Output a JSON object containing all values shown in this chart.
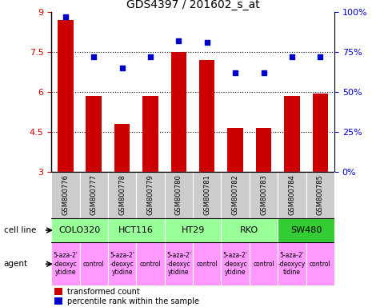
{
  "title": "GDS4397 / 201602_s_at",
  "samples": [
    "GSM800776",
    "GSM800777",
    "GSM800778",
    "GSM800779",
    "GSM800780",
    "GSM800781",
    "GSM800782",
    "GSM800783",
    "GSM800784",
    "GSM800785"
  ],
  "bar_values": [
    8.7,
    5.85,
    4.8,
    5.85,
    7.5,
    7.2,
    4.65,
    4.65,
    5.85,
    5.95
  ],
  "dot_values": [
    97,
    72,
    65,
    72,
    82,
    81,
    62,
    62,
    72,
    72
  ],
  "ylim": [
    3,
    9
  ],
  "yticks": [
    3,
    4.5,
    6,
    7.5,
    9
  ],
  "ytick_labels": [
    "3",
    "4.5",
    "6",
    "7.5",
    "9"
  ],
  "y2lim": [
    0,
    100
  ],
  "y2ticks": [
    0,
    25,
    50,
    75,
    100
  ],
  "y2labels": [
    "0%",
    "25%",
    "50%",
    "75%",
    "100%"
  ],
  "bar_color": "#cc0000",
  "dot_color": "#0000cc",
  "cell_lines": [
    {
      "label": "COLO320",
      "start": 0,
      "end": 2,
      "color": "#99ff99"
    },
    {
      "label": "HCT116",
      "start": 2,
      "end": 4,
      "color": "#99ff99"
    },
    {
      "label": "HT29",
      "start": 4,
      "end": 6,
      "color": "#99ff99"
    },
    {
      "label": "RKO",
      "start": 6,
      "end": 8,
      "color": "#99ff99"
    },
    {
      "label": "SW480",
      "start": 8,
      "end": 10,
      "color": "#33cc33"
    }
  ],
  "agents": [
    {
      "label": "5-aza-2'\n-deoxyc\nytidine",
      "start": 0,
      "end": 1,
      "color": "#ff99ff"
    },
    {
      "label": "control",
      "start": 1,
      "end": 2,
      "color": "#ff99ff"
    },
    {
      "label": "5-aza-2'\n-deoxyc\nytidine",
      "start": 2,
      "end": 3,
      "color": "#ff99ff"
    },
    {
      "label": "control",
      "start": 3,
      "end": 4,
      "color": "#ff99ff"
    },
    {
      "label": "5-aza-2'\n-deoxyc\nytidine",
      "start": 4,
      "end": 5,
      "color": "#ff99ff"
    },
    {
      "label": "control",
      "start": 5,
      "end": 6,
      "color": "#ff99ff"
    },
    {
      "label": "5-aza-2'\n-deoxyc\nytidine",
      "start": 6,
      "end": 7,
      "color": "#ff99ff"
    },
    {
      "label": "control",
      "start": 7,
      "end": 8,
      "color": "#ff99ff"
    },
    {
      "label": "5-aza-2'\n-deoxycy\ntidine",
      "start": 8,
      "end": 9,
      "color": "#ff99ff"
    },
    {
      "label": "control",
      "start": 9,
      "end": 10,
      "color": "#ff99ff"
    }
  ],
  "sample_bg_color": "#cccccc",
  "legend_bar_label": "transformed count",
  "legend_dot_label": "percentile rank within the sample",
  "cell_line_label": "cell line",
  "agent_label": "agent",
  "fig_width": 4.75,
  "fig_height": 3.84,
  "dpi": 100
}
